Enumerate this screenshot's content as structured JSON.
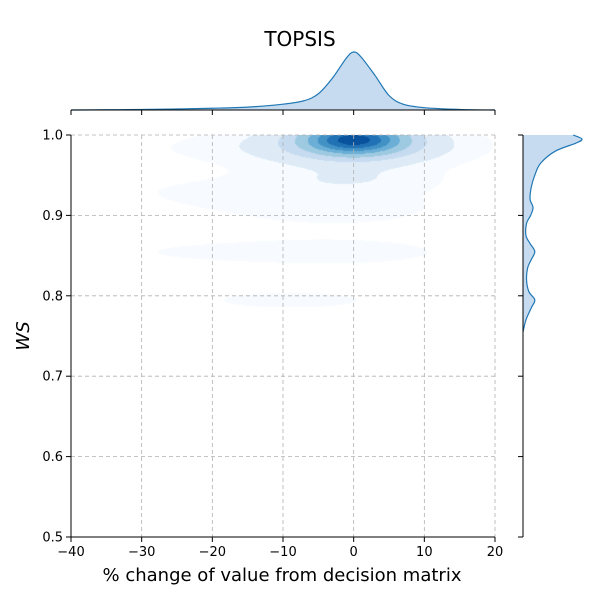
{
  "chart_data": {
    "type": "kde_joint",
    "title": "TOPSIS",
    "xlabel": "% change of value from decision matrix",
    "ylabel": "WS",
    "xlim": [
      -40,
      20
    ],
    "ylim": [
      0.5,
      1.0
    ],
    "xticks": [
      -40,
      -30,
      -20,
      -10,
      0,
      10,
      20
    ],
    "yticks": [
      0.5,
      0.6,
      0.7,
      0.8,
      0.9,
      1.0
    ],
    "xtick_labels": [
      "−40",
      "−30",
      "−20",
      "−10",
      "0",
      "10",
      "20"
    ],
    "ytick_labels": [
      "0.5",
      "0.6",
      "0.7",
      "0.8",
      "0.9",
      "1.0"
    ],
    "grid": true,
    "colors": {
      "line": "#1f77b4",
      "fill": "#c6dbef",
      "grid": "#b0b0b0",
      "density_scale": [
        "#f7fbff",
        "#deebf7",
        "#c6dbef",
        "#9ecae1",
        "#6baed6",
        "#4292c6",
        "#2171b5",
        "#08519c"
      ]
    },
    "joint_density": [
      {
        "x": 0,
        "y": 0.995,
        "sx": 4.5,
        "sy": 0.012,
        "w": 1.0
      },
      {
        "x": 0,
        "y": 0.99,
        "sx": 9,
        "sy": 0.02,
        "w": 0.25
      },
      {
        "x": -8,
        "y": 0.985,
        "sx": 17,
        "sy": 0.016,
        "w": 0.06
      },
      {
        "x": -14,
        "y": 0.93,
        "sx": 17,
        "sy": 0.018,
        "w": 0.05
      },
      {
        "x": -2,
        "y": 0.905,
        "sx": 13,
        "sy": 0.018,
        "w": 0.045
      },
      {
        "x": 0,
        "y": 0.945,
        "sx": 8,
        "sy": 0.01,
        "w": 0.06
      },
      {
        "x": -14,
        "y": 0.855,
        "sx": 19,
        "sy": 0.014,
        "w": 0.05
      },
      {
        "x": -1,
        "y": 0.855,
        "sx": 7,
        "sy": 0.008,
        "w": 0.06
      },
      {
        "x": -9,
        "y": 0.795,
        "sx": 17,
        "sy": 0.016,
        "w": 0.045
      }
    ],
    "x_marginal": {
      "x": [
        -40,
        -35,
        -30,
        -25,
        -20,
        -15,
        -10,
        -7,
        -5,
        -3,
        -1,
        0,
        1,
        3,
        5,
        7,
        10,
        15,
        20
      ],
      "density": [
        0.0,
        0.004,
        0.008,
        0.018,
        0.03,
        0.05,
        0.1,
        0.16,
        0.28,
        0.55,
        0.9,
        1.0,
        0.92,
        0.6,
        0.25,
        0.1,
        0.04,
        0.01,
        0.0
      ]
    },
    "y_marginal": {
      "y": [
        0.755,
        0.77,
        0.785,
        0.795,
        0.805,
        0.82,
        0.835,
        0.845,
        0.855,
        0.865,
        0.875,
        0.89,
        0.9,
        0.91,
        0.92,
        0.935,
        0.95,
        0.965,
        0.98,
        0.99,
        0.995,
        1.0
      ],
      "density": [
        0.0,
        0.05,
        0.14,
        0.2,
        0.1,
        0.06,
        0.08,
        0.14,
        0.2,
        0.12,
        0.05,
        0.06,
        0.13,
        0.17,
        0.12,
        0.14,
        0.2,
        0.3,
        0.55,
        0.9,
        1.0,
        0.85
      ]
    }
  }
}
